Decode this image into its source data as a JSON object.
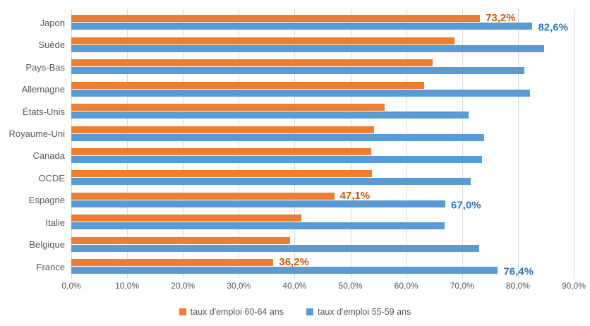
{
  "chart_data": {
    "type": "bar",
    "orientation": "horizontal",
    "title": "",
    "xlabel": "",
    "ylabel": "",
    "xlim": [
      0,
      90
    ],
    "x_tick_labels": [
      "0,0%",
      "10,0%",
      "20,0%",
      "30,0%",
      "40,0%",
      "50,0%",
      "60,0%",
      "70,0%",
      "80,0%",
      "90,0%"
    ],
    "grid": "vertical-only",
    "legend_position": "bottom-center",
    "categories": [
      "Japon",
      "Suède",
      "Pays-Bas",
      "Allemagne",
      "États-Unis",
      "Royaume-Uni",
      "Canada",
      "OCDE",
      "Espagne",
      "Italie",
      "Belgique",
      "France"
    ],
    "series": [
      {
        "name": "taux d'emploi 60-64 ans",
        "color": "#ED7D31",
        "label_color": "#C55A11",
        "values": [
          73.2,
          68.7,
          64.7,
          63.2,
          56.1,
          54.2,
          53.7,
          53.8,
          47.1,
          41.2,
          39.2,
          36.2
        ],
        "value_labels": [
          "73,2%",
          "",
          "",
          "",
          "",
          "",
          "",
          "",
          "47,1%",
          "",
          "",
          "36,2%"
        ]
      },
      {
        "name": "taux d'emploi 55-59 ans",
        "color": "#5B9BD5",
        "label_color": "#2E75B6",
        "values": [
          82.6,
          84.7,
          81.1,
          82.2,
          71.2,
          73.9,
          73.6,
          71.6,
          67.0,
          66.9,
          73.1,
          76.4
        ],
        "value_labels": [
          "82,6%",
          "",
          "",
          "",
          "",
          "",
          "",
          "",
          "67,0%",
          "",
          "",
          "76,4%"
        ]
      }
    ]
  },
  "colors": {
    "gridline": "#D9D9D9",
    "axis_text": "#595959",
    "background": "#FFFFFF"
  }
}
